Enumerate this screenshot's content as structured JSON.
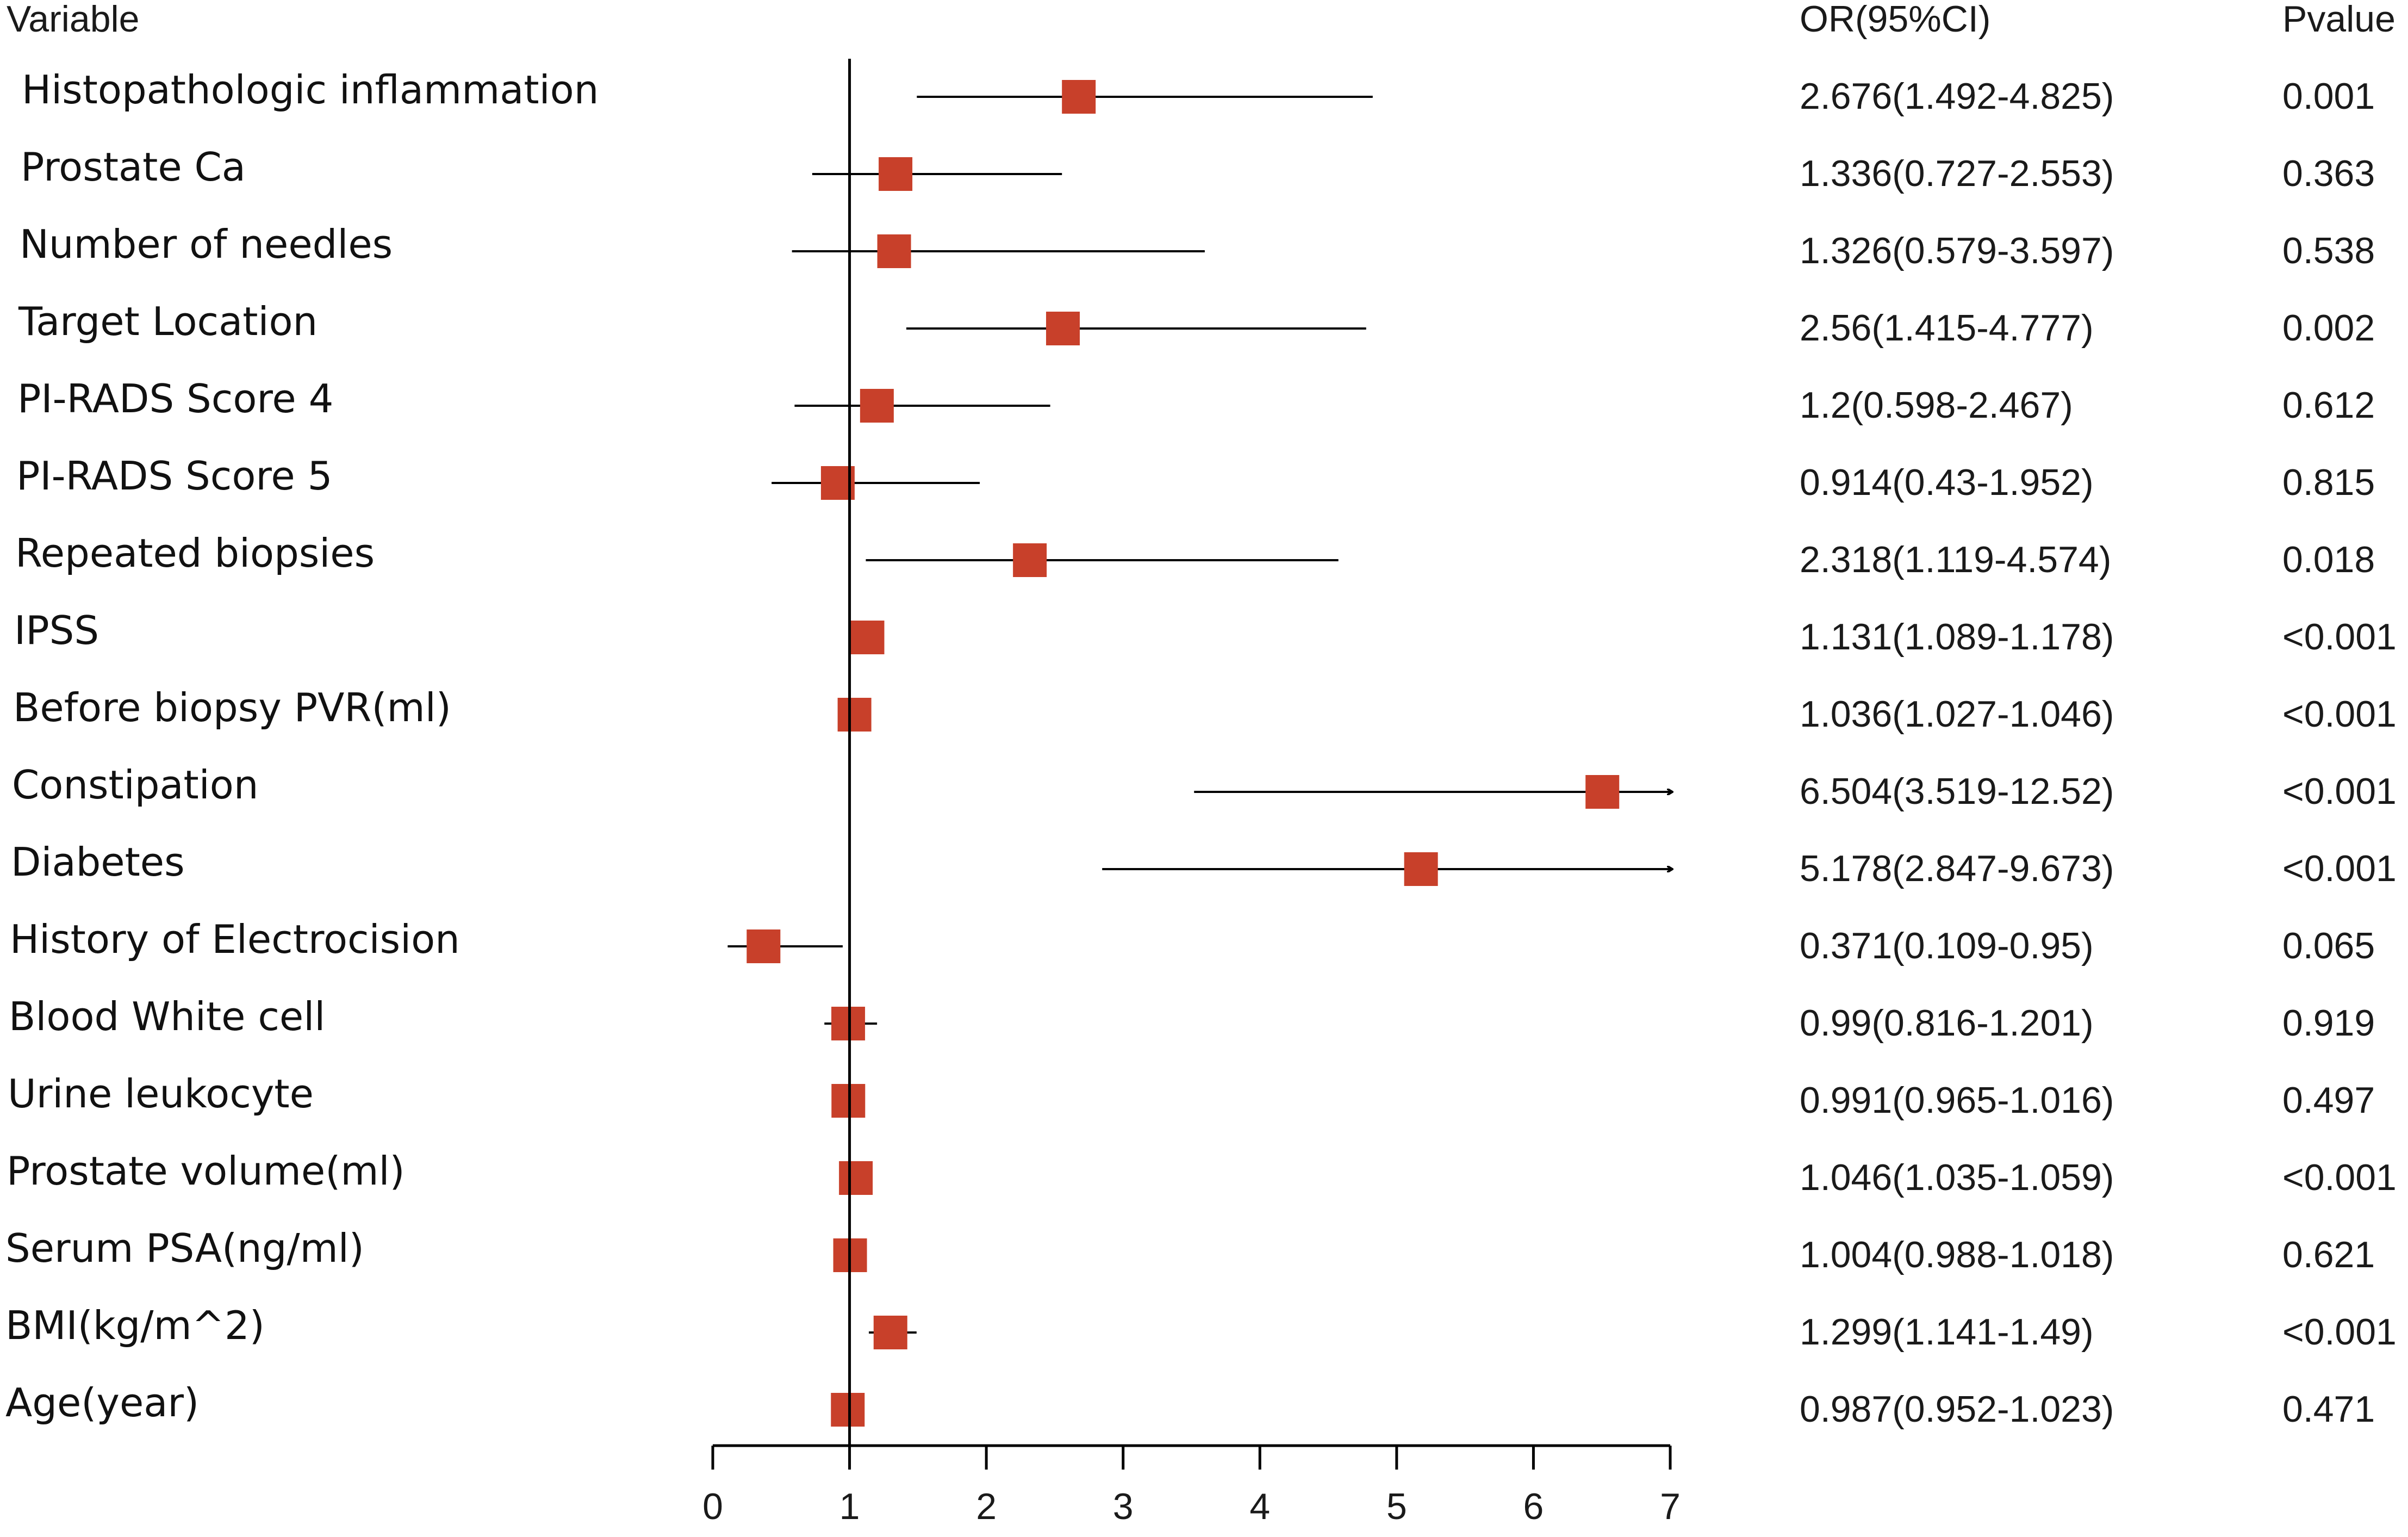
{
  "chart_data": {
    "type": "forest",
    "headers": {
      "variable": "Variable",
      "or_ci": "OR(95%CI)",
      "pvalue": "Pvalue"
    },
    "reference_line": 1,
    "xlim": [
      0,
      7
    ],
    "xticks": [
      "0",
      "1",
      "2",
      "3",
      "4",
      "5",
      "6",
      "7"
    ],
    "colors": {
      "marker": "#c8402a",
      "line": "#000000",
      "text": "#1a1a1a"
    },
    "rows": [
      {
        "variable": "Histopathologic inflammation",
        "or": 2.676,
        "lower": 1.492,
        "upper": 4.825,
        "or_ci": "2.676(1.492-4.825)",
        "pvalue": "0.001",
        "arrow": false
      },
      {
        "variable": "Prostate Ca",
        "or": 1.336,
        "lower": 0.727,
        "upper": 2.553,
        "or_ci": "1.336(0.727-2.553)",
        "pvalue": "0.363",
        "arrow": false
      },
      {
        "variable": "Number of needles",
        "or": 1.326,
        "lower": 0.579,
        "upper": 3.597,
        "or_ci": "1.326(0.579-3.597)",
        "pvalue": "0.538",
        "arrow": false
      },
      {
        "variable": "Target Location",
        "or": 2.56,
        "lower": 1.415,
        "upper": 4.777,
        "or_ci": "2.56(1.415-4.777)",
        "pvalue": "0.002",
        "arrow": false
      },
      {
        "variable": "PI-RADS Score 4",
        "or": 1.2,
        "lower": 0.598,
        "upper": 2.467,
        "or_ci": "1.2(0.598-2.467)",
        "pvalue": "0.612",
        "arrow": false
      },
      {
        "variable": "PI-RADS Score 5",
        "or": 0.914,
        "lower": 0.43,
        "upper": 1.952,
        "or_ci": "0.914(0.43-1.952)",
        "pvalue": "0.815",
        "arrow": false
      },
      {
        "variable": "Repeated biopsies",
        "or": 2.318,
        "lower": 1.119,
        "upper": 4.574,
        "or_ci": "2.318(1.119-4.574)",
        "pvalue": "0.018",
        "arrow": false
      },
      {
        "variable": "IPSS",
        "or": 1.131,
        "lower": 1.089,
        "upper": 1.178,
        "or_ci": "1.131(1.089-1.178)",
        "pvalue": "<0.001",
        "arrow": false
      },
      {
        "variable": "Before biopsy PVR(ml)",
        "or": 1.036,
        "lower": 1.027,
        "upper": 1.046,
        "or_ci": "1.036(1.027-1.046)",
        "pvalue": "<0.001",
        "arrow": false
      },
      {
        "variable": "Constipation",
        "or": 6.504,
        "lower": 3.519,
        "upper": 12.52,
        "or_ci": "6.504(3.519-12.52)",
        "pvalue": "<0.001",
        "arrow": true
      },
      {
        "variable": "Diabetes",
        "or": 5.178,
        "lower": 2.847,
        "upper": 9.673,
        "or_ci": "5.178(2.847-9.673)",
        "pvalue": "<0.001",
        "arrow": true
      },
      {
        "variable": "History of Electrocision",
        "or": 0.371,
        "lower": 0.109,
        "upper": 0.95,
        "or_ci": "0.371(0.109-0.95)",
        "pvalue": "0.065",
        "arrow": false
      },
      {
        "variable": "Blood White cell",
        "or": 0.99,
        "lower": 0.816,
        "upper": 1.201,
        "or_ci": "0.99(0.816-1.201)",
        "pvalue": "0.919",
        "arrow": false
      },
      {
        "variable": "Urine leukocyte",
        "or": 0.991,
        "lower": 0.965,
        "upper": 1.016,
        "or_ci": "0.991(0.965-1.016)",
        "pvalue": "0.497",
        "arrow": false
      },
      {
        "variable": "Prostate volume(ml)",
        "or": 1.046,
        "lower": 1.035,
        "upper": 1.059,
        "or_ci": "1.046(1.035-1.059)",
        "pvalue": "<0.001",
        "arrow": false
      },
      {
        "variable": "Serum PSA(ng/ml)",
        "or": 1.004,
        "lower": 0.988,
        "upper": 1.018,
        "or_ci": "1.004(0.988-1.018)",
        "pvalue": "0.621",
        "arrow": false
      },
      {
        "variable": "BMI(kg/m^2)",
        "or": 1.299,
        "lower": 1.141,
        "upper": 1.49,
        "or_ci": "1.299(1.141-1.49)",
        "pvalue": "<0.001",
        "arrow": false
      },
      {
        "variable": "Age(year)",
        "or": 0.987,
        "lower": 0.952,
        "upper": 1.023,
        "or_ci": "0.987(0.952-1.023)",
        "pvalue": "0.471",
        "arrow": false
      }
    ]
  }
}
